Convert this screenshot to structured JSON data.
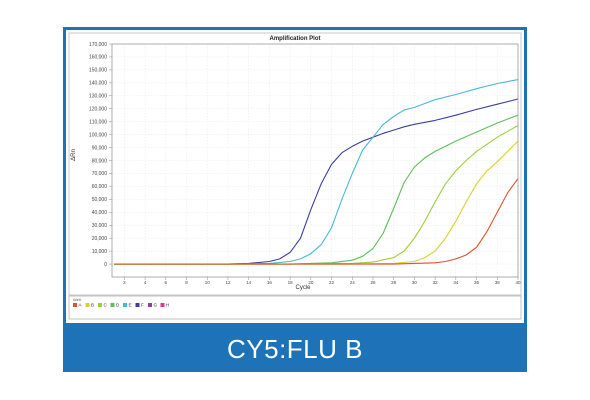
{
  "caption": "CY5:FLU B",
  "legend_caption": "Well",
  "chart_data": {
    "type": "line",
    "title": "Amplification Plot",
    "xlabel": "Cycle",
    "ylabel": "ΔRn",
    "xlim": [
      1,
      40
    ],
    "ylim": [
      -10000,
      170000
    ],
    "x_ticks": [
      2,
      4,
      6,
      8,
      10,
      12,
      14,
      16,
      18,
      20,
      22,
      24,
      26,
      28,
      30,
      32,
      34,
      36,
      38,
      40
    ],
    "y_ticks": [
      0,
      10000,
      20000,
      30000,
      40000,
      50000,
      60000,
      70000,
      80000,
      90000,
      100000,
      110000,
      120000,
      130000,
      140000,
      150000,
      160000,
      170000
    ],
    "y_tick_labels": [
      "0",
      "10,000",
      "20,000",
      "30,000",
      "40,000",
      "50,000",
      "60,000",
      "70,000",
      "80,000",
      "90,000",
      "100,000",
      "110,000",
      "120,000",
      "130,000",
      "140,000",
      "150,000",
      "160,000",
      "170,000"
    ],
    "grid": true,
    "legend_position": "bottom",
    "legend": [
      {
        "name": "A",
        "color": "#e0512b"
      },
      {
        "name": "B",
        "color": "#d9d02a"
      },
      {
        "name": "C",
        "color": "#9ccd3b"
      },
      {
        "name": "D",
        "color": "#5cbf5a"
      },
      {
        "name": "E",
        "color": "#46b9d6"
      },
      {
        "name": "F",
        "color": "#3c3d9e"
      },
      {
        "name": "G",
        "color": "#8e3fa2"
      },
      {
        "name": "H",
        "color": "#d83b8c"
      }
    ],
    "series": [
      {
        "name": "F",
        "color": "#3c3d9e",
        "x": [
          1,
          4,
          8,
          12,
          14,
          16,
          17,
          18,
          19,
          20,
          21,
          22,
          23,
          24,
          25,
          26,
          27,
          28,
          29,
          30,
          32,
          34,
          36,
          38,
          40
        ],
        "y": [
          0,
          0,
          0,
          0,
          500,
          2000,
          4000,
          9000,
          20000,
          42000,
          62000,
          77000,
          86000,
          91000,
          95000,
          98000,
          101000,
          103500,
          106000,
          108000,
          111000,
          115000,
          119500,
          123500,
          127500
        ]
      },
      {
        "name": "E",
        "color": "#46b9d6",
        "x": [
          1,
          4,
          8,
          12,
          16,
          18,
          19,
          20,
          21,
          22,
          23,
          24,
          25,
          26,
          27,
          28,
          29,
          30,
          31,
          32,
          34,
          36,
          38,
          40
        ],
        "y": [
          0,
          0,
          0,
          0,
          500,
          2000,
          4000,
          8000,
          15000,
          28000,
          50000,
          70000,
          88000,
          98000,
          108000,
          114000,
          119000,
          121000,
          124000,
          127000,
          131000,
          135500,
          139500,
          142500
        ]
      },
      {
        "name": "D",
        "color": "#5cbf5a",
        "x": [
          1,
          6,
          12,
          18,
          22,
          24,
          25,
          26,
          27,
          28,
          29,
          30,
          31,
          32,
          33,
          34,
          36,
          38,
          40
        ],
        "y": [
          0,
          0,
          0,
          0,
          1000,
          3000,
          6000,
          12000,
          24000,
          43000,
          63000,
          75000,
          82000,
          87000,
          91000,
          95000,
          102000,
          109000,
          115000
        ]
      },
      {
        "name": "C",
        "color": "#9ccd3b",
        "x": [
          1,
          6,
          12,
          18,
          24,
          26,
          28,
          29,
          30,
          31,
          32,
          33,
          34,
          35,
          36,
          38,
          40
        ],
        "y": [
          0,
          0,
          0,
          0,
          500,
          1500,
          5000,
          10000,
          20000,
          33000,
          48000,
          62000,
          72000,
          80000,
          87000,
          98000,
          107000
        ]
      },
      {
        "name": "B",
        "color": "#d9d02a",
        "x": [
          1,
          6,
          12,
          18,
          24,
          28,
          30,
          31,
          32,
          33,
          34,
          35,
          36,
          37,
          38,
          40
        ],
        "y": [
          0,
          0,
          0,
          0,
          0,
          500,
          2000,
          5000,
          10000,
          20000,
          33000,
          48000,
          62000,
          72000,
          79000,
          95000
        ]
      },
      {
        "name": "A",
        "color": "#e0512b",
        "x": [
          1,
          6,
          12,
          18,
          24,
          28,
          32,
          33,
          34,
          35,
          36,
          37,
          38,
          39,
          40
        ],
        "y": [
          0,
          0,
          0,
          0,
          0,
          0,
          1000,
          2000,
          4000,
          7000,
          13000,
          25000,
          40000,
          55000,
          66000
        ]
      }
    ]
  }
}
